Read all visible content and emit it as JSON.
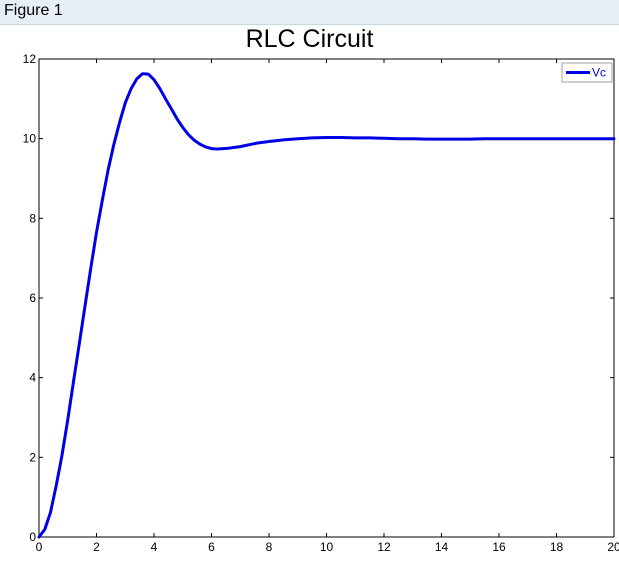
{
  "window": {
    "figure_label": "Figure 1"
  },
  "colors": {
    "series": "#0000e6",
    "axis": "#000000",
    "figure_bar": "#e6eef6"
  },
  "chart_data": {
    "type": "line",
    "title": "RLC Circuit",
    "xlabel": "",
    "ylabel": "",
    "xlim": [
      0,
      20
    ],
    "ylim": [
      0,
      12
    ],
    "x_ticks": [
      0,
      2,
      4,
      6,
      8,
      10,
      12,
      14,
      16,
      18,
      20
    ],
    "y_ticks": [
      0,
      2,
      4,
      6,
      8,
      10,
      12
    ],
    "grid": false,
    "legend": {
      "position": "top-right",
      "entries": [
        "Vc"
      ]
    },
    "series": [
      {
        "name": "Vc",
        "color": "#0000e6",
        "x": [
          0,
          0.2,
          0.4,
          0.6,
          0.8,
          1.0,
          1.2,
          1.4,
          1.6,
          1.8,
          2.0,
          2.2,
          2.4,
          2.6,
          2.8,
          3.0,
          3.2,
          3.4,
          3.6,
          3.8,
          4.0,
          4.2,
          4.4,
          4.6,
          4.8,
          5.0,
          5.2,
          5.4,
          5.6,
          5.8,
          6.0,
          6.2,
          6.4,
          6.6,
          6.8,
          7.0,
          7.2,
          7.4,
          7.6,
          7.8,
          8.0,
          8.5,
          9.0,
          9.5,
          10.0,
          10.5,
          11.0,
          11.5,
          12.0,
          12.5,
          13.0,
          13.5,
          14.0,
          14.5,
          15.0,
          15.5,
          16.0,
          17.0,
          18.0,
          19.0,
          20.0
        ],
        "values": [
          0,
          0.19,
          0.62,
          1.3,
          2.05,
          2.95,
          3.9,
          4.85,
          5.8,
          6.75,
          7.65,
          8.45,
          9.2,
          9.85,
          10.4,
          10.9,
          11.25,
          11.5,
          11.63,
          11.62,
          11.48,
          11.26,
          11.0,
          10.75,
          10.5,
          10.28,
          10.1,
          9.96,
          9.86,
          9.79,
          9.75,
          9.74,
          9.75,
          9.76,
          9.78,
          9.8,
          9.83,
          9.86,
          9.89,
          9.91,
          9.93,
          9.97,
          10.0,
          10.02,
          10.03,
          10.03,
          10.02,
          10.02,
          10.01,
          10.0,
          10.0,
          9.99,
          9.99,
          9.99,
          9.99,
          10.0,
          10.0,
          10.0,
          10.0,
          10.0,
          10.0
        ]
      }
    ]
  }
}
